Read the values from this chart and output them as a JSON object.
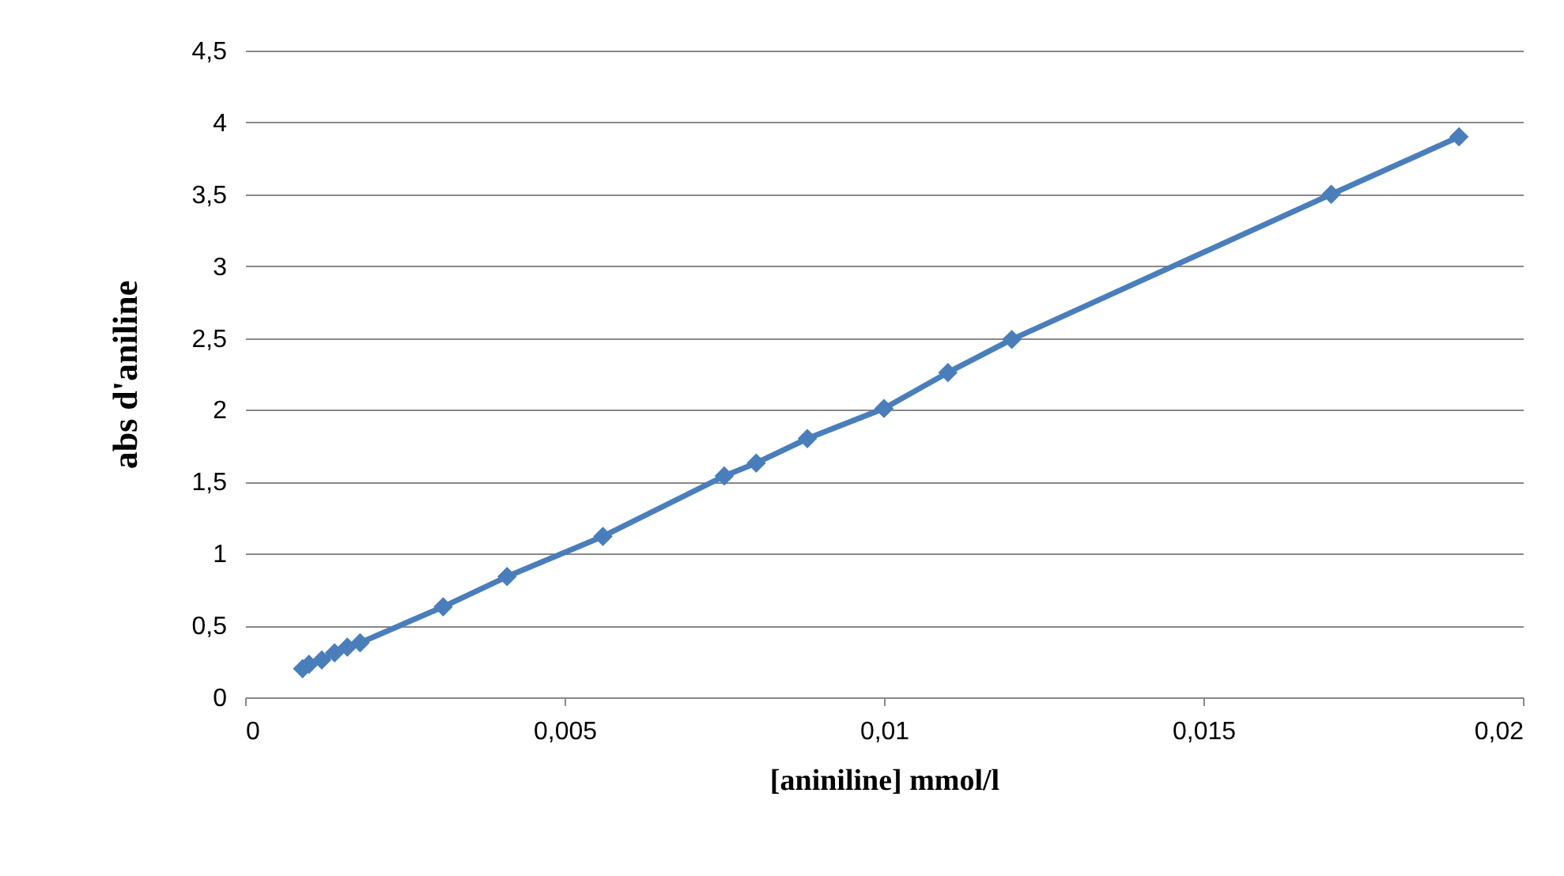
{
  "chart_data": {
    "type": "line",
    "xlabel": "[aniniline] mmol/l",
    "ylabel": "abs  d'aniline",
    "x": [
      0.0009,
      0.001,
      0.0012,
      0.0014,
      0.0016,
      0.0018,
      0.0031,
      0.0041,
      0.0056,
      0.0075,
      0.008,
      0.0088,
      0.01,
      0.011,
      0.012,
      0.017,
      0.019
    ],
    "series": [
      {
        "color": "#4a7ebb",
        "values": [
          0.2,
          0.23,
          0.26,
          0.31,
          0.35,
          0.38,
          0.63,
          0.84,
          1.12,
          1.54,
          1.63,
          1.8,
          2.01,
          2.26,
          2.49,
          3.5,
          3.9
        ]
      }
    ],
    "xlim": [
      0,
      0.02
    ],
    "xticks": [
      0,
      {
        "value": 0.005,
        "label": "0,005"
      },
      {
        "value": 0.01,
        "label": "0,01"
      },
      {
        "value": 0.015,
        "label": "0,015"
      },
      {
        "value": 0.02,
        "label": "0,02"
      }
    ],
    "ylim": [
      0,
      4.5
    ],
    "yticks": [
      0,
      {
        "value": 0.5,
        "label": "0,5"
      },
      1,
      {
        "value": 1.5,
        "label": "1,5"
      },
      2,
      {
        "value": 2.5,
        "label": "2,5"
      },
      3,
      {
        "value": 3.5,
        "label": "3,5"
      },
      4,
      {
        "value": 4.5,
        "label": "4,5"
      }
    ],
    "grid": "y",
    "marker": "diamond",
    "line_style": "solid",
    "legend": false
  }
}
